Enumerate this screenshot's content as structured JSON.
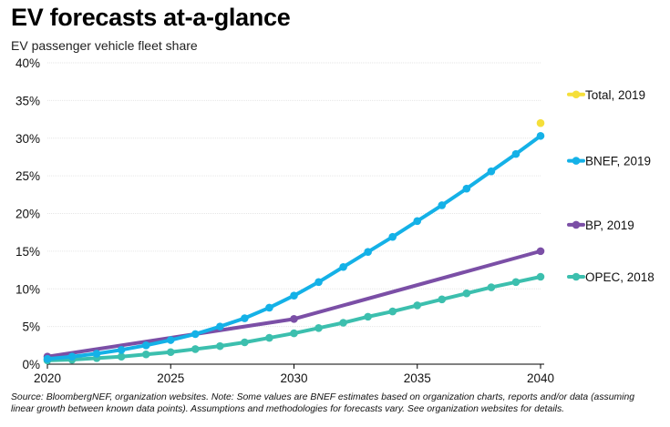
{
  "header": {
    "title": "EV forecasts at-a-glance",
    "subtitle": "EV passenger vehicle fleet share"
  },
  "footer": {
    "source": "Source: BloombergNEF, organization websites. Note: Some values are BNEF estimates based on organization charts, reports and/or data (assuming linear growth between known data points). Assumptions and methodologies for forecasts vary. See organization websites for details."
  },
  "chart_data": {
    "type": "line",
    "title": "EV forecasts at-a-glance",
    "subtitle": "EV passenger vehicle fleet share",
    "xlabel": "",
    "ylabel": "",
    "xlim": [
      2020,
      2040
    ],
    "ylim": [
      0,
      40
    ],
    "x_ticks": [
      2020,
      2025,
      2030,
      2035,
      2040
    ],
    "x_tick_labels": [
      "2020",
      "2025",
      "2030",
      "2035",
      "2040"
    ],
    "y_ticks": [
      0,
      5,
      10,
      15,
      20,
      25,
      30,
      35,
      40
    ],
    "y_tick_labels": [
      "0%",
      "5%",
      "10%",
      "15%",
      "20%",
      "25%",
      "30%",
      "35%",
      "40%"
    ],
    "grid": true,
    "legend": "right, labels beside line ends",
    "series": [
      {
        "name": "OPEC, 2018",
        "color": "#3cbfae",
        "x": [
          2020,
          2021,
          2022,
          2023,
          2024,
          2025,
          2026,
          2027,
          2028,
          2029,
          2030,
          2031,
          2032,
          2033,
          2034,
          2035,
          2036,
          2037,
          2038,
          2039,
          2040
        ],
        "values": [
          0.5,
          0.6,
          0.8,
          1.0,
          1.3,
          1.6,
          2.0,
          2.4,
          2.9,
          3.5,
          4.1,
          4.8,
          5.5,
          6.3,
          7.0,
          7.8,
          8.6,
          9.4,
          10.2,
          10.9,
          11.6
        ],
        "markers": true,
        "legend_y": 11.6
      },
      {
        "name": "BP, 2019",
        "color": "#7b4fa6",
        "x": [
          2020,
          2030,
          2040
        ],
        "values": [
          1.0,
          6.0,
          15.0
        ],
        "markers": true,
        "legend_y": 18.5
      },
      {
        "name": "BNEF, 2019",
        "color": "#14b1e7",
        "x": [
          2020,
          2021,
          2022,
          2023,
          2024,
          2025,
          2026,
          2027,
          2028,
          2029,
          2030,
          2031,
          2032,
          2033,
          2034,
          2035,
          2036,
          2037,
          2038,
          2039,
          2040
        ],
        "values": [
          0.7,
          1.0,
          1.4,
          1.9,
          2.5,
          3.2,
          4.0,
          5.0,
          6.1,
          7.5,
          9.1,
          10.9,
          12.9,
          14.9,
          16.9,
          19.0,
          21.1,
          23.3,
          25.6,
          27.9,
          30.3
        ],
        "markers": true,
        "legend_y": 27.0
      },
      {
        "name": "Total, 2019",
        "color": "#f5df3a",
        "x": [
          2040
        ],
        "values": [
          32.0
        ],
        "markers": true,
        "legend_y": 35.8
      }
    ]
  }
}
